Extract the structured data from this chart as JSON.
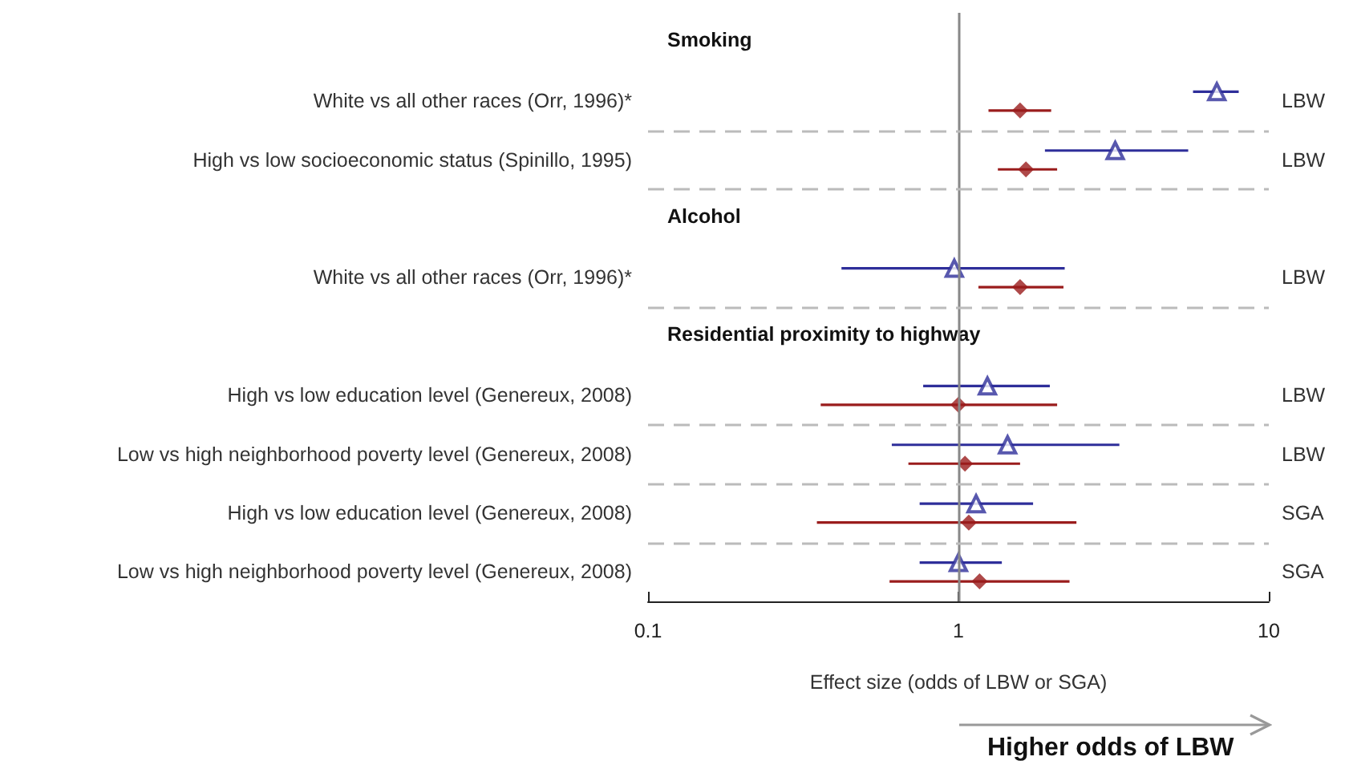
{
  "chart_data": {
    "type": "scatter",
    "orientation": "horizontal",
    "log": "x",
    "xlabel": "Effect size (odds of LBW or SGA)",
    "xlim": [
      0.1,
      10
    ],
    "xticks": [
      0.1,
      1,
      10
    ],
    "grid": "y",
    "categories": [
      "Smoking",
      "White vs all other races (Orr, 1996)*",
      "High vs low socioeconomic status (Spinillo, 1995)",
      "Alcohol",
      "White vs all other races (Orr, 1996)*",
      "Residential proximity to highway",
      "High vs low education level (Genereux, 2008)",
      "Low vs high neighborhood poverty level (Genereux, 2008)",
      "High vs low education level (Genereux, 2008)",
      "Low vs high neighborhood poverty level (Genereux, 2008)"
    ],
    "y2_categories": [
      null,
      "LBW",
      "LBW",
      null,
      "LBW",
      null,
      "LBW",
      "LBW",
      "SGA",
      "SGA"
    ],
    "series": [
      {
        "color": "#2e2e9a",
        "marker": "triangle",
        "values": [
          null,
          6.8,
          3.2,
          null,
          0.97,
          null,
          1.24,
          1.44,
          1.14,
          1.0
        ],
        "errors": [
          null,
          [
            5.7,
            8.0
          ],
          [
            1.9,
            5.5
          ],
          null,
          [
            0.42,
            2.2
          ],
          null,
          [
            0.77,
            1.97
          ],
          [
            0.61,
            3.3
          ],
          [
            0.75,
            1.74
          ],
          [
            0.75,
            1.38
          ]
        ]
      },
      {
        "color": "#9a1c1c",
        "marker": "diamond",
        "values": [
          null,
          1.58,
          1.65,
          null,
          1.58,
          null,
          1.0,
          1.05,
          1.08,
          1.17
        ],
        "errors": [
          null,
          [
            1.25,
            1.99
          ],
          [
            1.34,
            2.08
          ],
          null,
          [
            1.16,
            2.18
          ],
          null,
          [
            0.36,
            2.08
          ],
          [
            0.69,
            1.58
          ],
          [
            0.35,
            2.4
          ],
          [
            0.6,
            2.28
          ]
        ]
      }
    ],
    "ref_lines": [
      {
        "axis": "x",
        "value": 1,
        "color": "#888888"
      }
    ],
    "annotations": [
      "Higher odds of LBW"
    ]
  }
}
